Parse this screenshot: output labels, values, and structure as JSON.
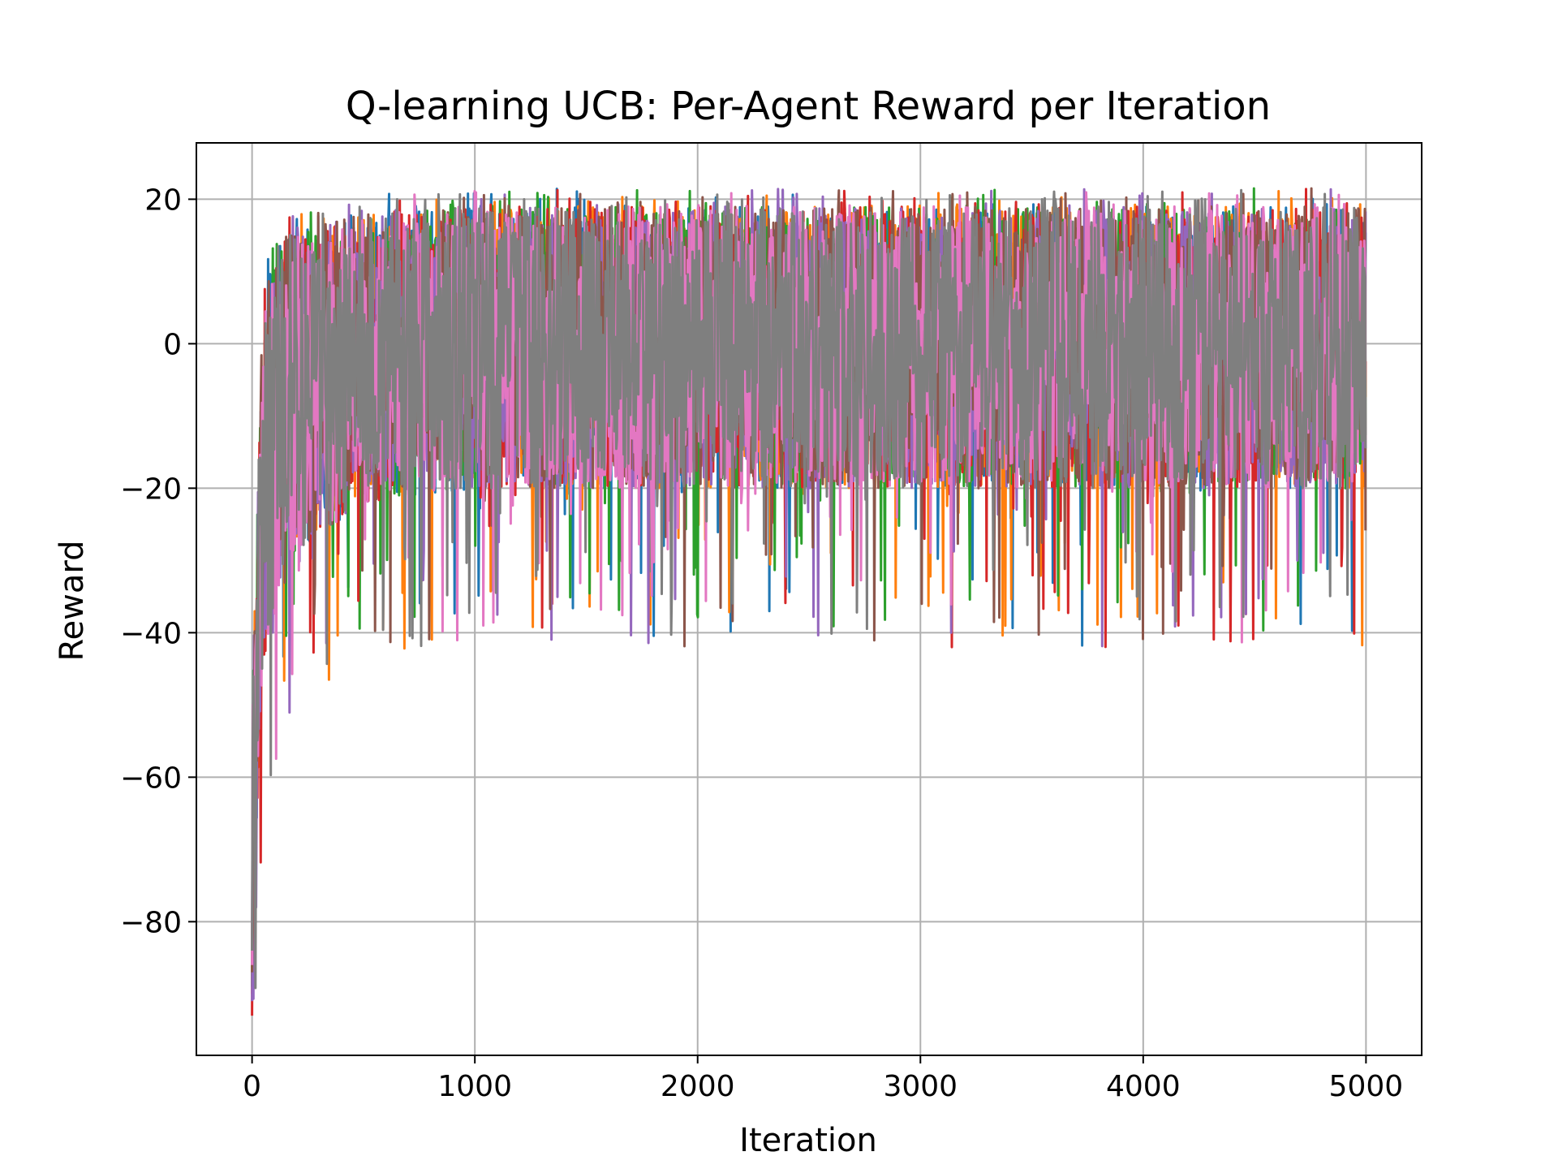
{
  "chart_data": {
    "type": "line",
    "title": "Q-learning UCB: Per-Agent Reward per Iteration",
    "xlabel": "Iteration",
    "ylabel": "Reward",
    "xlim": [
      -250,
      5250
    ],
    "ylim": [
      -98.5,
      27.8
    ],
    "grid": true,
    "legend": "none",
    "x_ticks": [
      0,
      1000,
      2000,
      3000,
      4000,
      5000
    ],
    "x_tick_labels": [
      "0",
      "1000",
      "2000",
      "3000",
      "4000",
      "5000"
    ],
    "y_ticks": [
      -80,
      -60,
      -40,
      -20,
      0,
      20
    ],
    "y_tick_labels": [
      "−80",
      "−60",
      "−40",
      "−20",
      "0",
      "20"
    ],
    "num_iterations": 5000,
    "series": [
      {
        "color": "#1f77b4",
        "band": {
          "x": [
            0,
            50,
            150,
            500,
            1000,
            5000
          ],
          "upper": [
            -50,
            8,
            15,
            18,
            19,
            19
          ],
          "lower": [
            -85,
            -45,
            -30,
            -22,
            -20,
            -20
          ]
        },
        "initial_value": -88
      },
      {
        "color": "#ff7f0e",
        "band": {
          "x": [
            0,
            50,
            150,
            500,
            1000,
            5000
          ],
          "upper": [
            -50,
            8,
            15,
            18,
            19,
            19
          ],
          "lower": [
            -85,
            -45,
            -30,
            -22,
            -20,
            -20
          ]
        },
        "initial_value": -90
      },
      {
        "color": "#2ca02c",
        "band": {
          "x": [
            0,
            50,
            150,
            500,
            1000,
            5000
          ],
          "upper": [
            -50,
            8,
            15,
            18,
            19,
            19
          ],
          "lower": [
            -85,
            -45,
            -30,
            -22,
            -20,
            -20
          ]
        },
        "initial_value": -89
      },
      {
        "color": "#d62728",
        "band": {
          "x": [
            0,
            50,
            150,
            500,
            1000,
            5000
          ],
          "upper": [
            -50,
            8,
            15,
            18,
            19,
            19
          ],
          "lower": [
            -85,
            -45,
            -30,
            -22,
            -20,
            -20
          ]
        },
        "initial_value": -93
      },
      {
        "color": "#9467bd",
        "band": {
          "x": [
            0,
            50,
            150,
            500,
            1000,
            5000
          ],
          "upper": [
            -50,
            8,
            15,
            18,
            19,
            19
          ],
          "lower": [
            -85,
            -45,
            -30,
            -22,
            -20,
            -20
          ]
        },
        "initial_value": -91
      },
      {
        "color": "#8c564b",
        "band": {
          "x": [
            0,
            50,
            150,
            500,
            1000,
            5000
          ],
          "upper": [
            -50,
            8,
            15,
            18,
            19,
            19
          ],
          "lower": [
            -85,
            -45,
            -30,
            -22,
            -20,
            -20
          ]
        },
        "initial_value": -87
      },
      {
        "color": "#e377c2",
        "band": {
          "x": [
            0,
            50,
            150,
            500,
            1000,
            5000
          ],
          "upper": [
            -50,
            8,
            15,
            18,
            19,
            19
          ],
          "lower": [
            -85,
            -45,
            -30,
            -22,
            -20,
            -20
          ]
        },
        "initial_value": -86
      },
      {
        "color": "#7f7f7f",
        "band": {
          "x": [
            0,
            50,
            150,
            500,
            1000,
            5000
          ],
          "upper": [
            -50,
            8,
            15,
            18,
            19,
            19
          ],
          "lower": [
            -85,
            -45,
            -30,
            -22,
            -20,
            -20
          ]
        },
        "initial_value": -84
      }
    ]
  }
}
